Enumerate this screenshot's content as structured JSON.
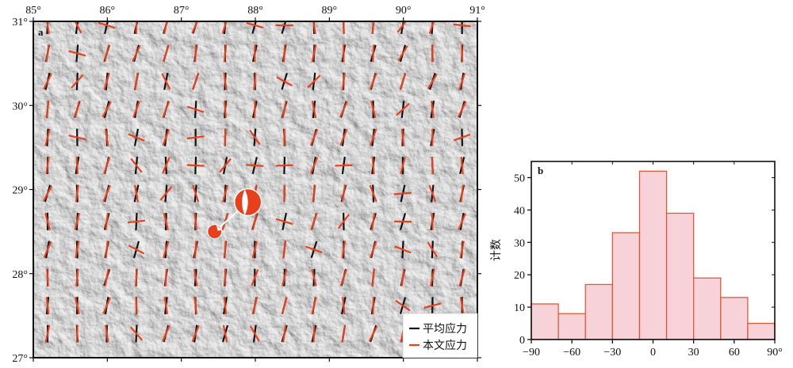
{
  "map_panel": {
    "label": "a",
    "lon_range": [
      85,
      91
    ],
    "lat_range": [
      27,
      31
    ],
    "lon_ticks": [
      "85°",
      "86°",
      "87°",
      "88°",
      "89°",
      "90°",
      "91°"
    ],
    "lat_ticks": [
      "31°",
      "30°",
      "29°",
      "28°",
      "27°"
    ],
    "legend": [
      {
        "label": "平均应力",
        "color": "#111111"
      },
      {
        "label": "本文应力",
        "color": "#e8401c"
      }
    ],
    "focal_mechanisms": [
      {
        "lon": 87.9,
        "lat": 28.85,
        "color": "#e8401c"
      },
      {
        "lon": 87.45,
        "lat": 28.5,
        "color": "#e8401c"
      }
    ],
    "shaded_relief": true
  },
  "chart_data": {
    "type": "bar",
    "panel_label": "b",
    "ylabel": "计数",
    "xlabel": "",
    "bins": [
      [
        -90,
        -70
      ],
      [
        -70,
        -50
      ],
      [
        -50,
        -30
      ],
      [
        -30,
        -10
      ],
      [
        -10,
        10
      ],
      [
        10,
        30
      ],
      [
        30,
        50
      ],
      [
        50,
        70
      ],
      [
        70,
        90
      ]
    ],
    "values": [
      11,
      8,
      17,
      33,
      52,
      39,
      19,
      13,
      5
    ],
    "xlim": [
      -90,
      90
    ],
    "ylim": [
      0,
      55
    ],
    "xticks": [
      -90,
      -60,
      -30,
      0,
      30,
      60,
      90
    ],
    "xtick_labels": [
      "−90",
      "−60",
      "−30",
      "0",
      "30",
      "60",
      "90°"
    ],
    "yticks": [
      0,
      10,
      20,
      30,
      40,
      50
    ],
    "bar_fill": "#f7d3d9",
    "bar_edge": "#e05a3a"
  }
}
